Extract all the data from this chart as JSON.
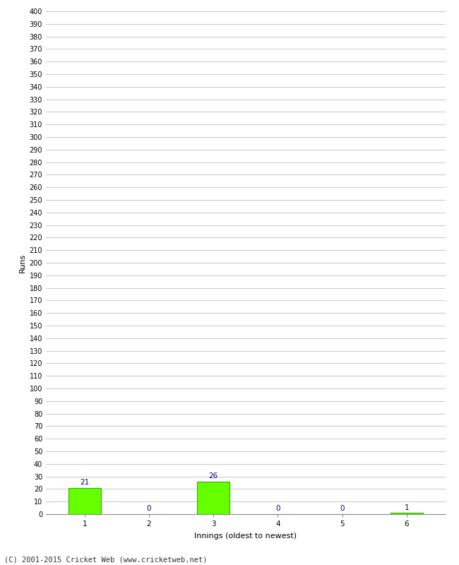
{
  "categories": [
    "1",
    "2",
    "3",
    "4",
    "5",
    "6"
  ],
  "values": [
    21,
    0,
    26,
    0,
    0,
    1
  ],
  "bar_color": "#66ff00",
  "bar_edge_color": "#33aa00",
  "label_color": "#000080",
  "ylabel": "Runs",
  "xlabel": "Innings (oldest to newest)",
  "ylim": [
    0,
    400
  ],
  "ytick_step": 10,
  "background_color": "#ffffff",
  "grid_color": "#c8c8c8",
  "footer": "(C) 2001-2015 Cricket Web (www.cricketweb.net)"
}
